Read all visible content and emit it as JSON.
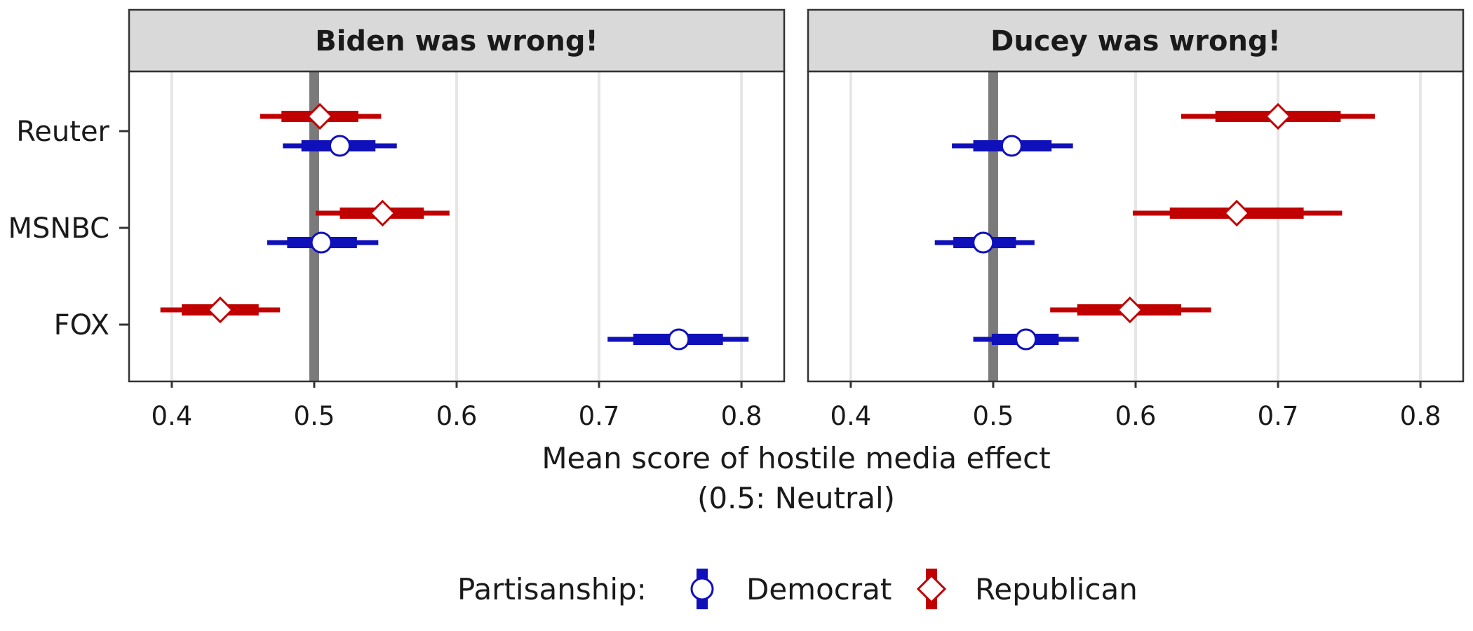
{
  "chart_data": {
    "type": "pointrange",
    "xlabel": "Mean score of hostile media effect",
    "xlabel_sub": "(0.5: Neutral)",
    "xlim": [
      0.37,
      0.83
    ],
    "xticks": [
      0.4,
      0.5,
      0.6,
      0.7,
      0.8
    ],
    "xtick_labels": [
      "0.4",
      "0.5",
      "0.6",
      "0.7",
      "0.8"
    ],
    "reference_line": 0.5,
    "categories": [
      "Reuter",
      "MSNBC",
      "FOX"
    ],
    "grid": true,
    "legend": {
      "title": "Partisanship:",
      "position": "bottom",
      "entries": [
        {
          "name": "Democrat",
          "color": "#1010bb",
          "marker": "circle"
        },
        {
          "name": "Republican",
          "color": "#c00000",
          "marker": "diamond"
        }
      ]
    },
    "panels": [
      {
        "title": "Biden was wrong!",
        "series": [
          {
            "name": "Democrat",
            "points": [
              {
                "category": "Reuter",
                "mean": 0.518,
                "ci_inner": [
                  0.491,
                  0.543
                ],
                "ci_outer": [
                  0.478,
                  0.558
                ]
              },
              {
                "category": "MSNBC",
                "mean": 0.505,
                "ci_inner": [
                  0.481,
                  0.53
                ],
                "ci_outer": [
                  0.467,
                  0.545
                ]
              },
              {
                "category": "FOX",
                "mean": 0.756,
                "ci_inner": [
                  0.724,
                  0.787
                ],
                "ci_outer": [
                  0.706,
                  0.805
                ]
              }
            ]
          },
          {
            "name": "Republican",
            "points": [
              {
                "category": "Reuter",
                "mean": 0.504,
                "ci_inner": [
                  0.477,
                  0.531
                ],
                "ci_outer": [
                  0.462,
                  0.547
                ]
              },
              {
                "category": "MSNBC",
                "mean": 0.548,
                "ci_inner": [
                  0.518,
                  0.577
                ],
                "ci_outer": [
                  0.501,
                  0.595
                ]
              },
              {
                "category": "FOX",
                "mean": 0.434,
                "ci_inner": [
                  0.407,
                  0.461
                ],
                "ci_outer": [
                  0.392,
                  0.476
                ]
              }
            ]
          }
        ]
      },
      {
        "title": "Ducey was wrong!",
        "series": [
          {
            "name": "Democrat",
            "points": [
              {
                "category": "Reuter",
                "mean": 0.513,
                "ci_inner": [
                  0.486,
                  0.541
                ],
                "ci_outer": [
                  0.471,
                  0.556
                ]
              },
              {
                "category": "MSNBC",
                "mean": 0.493,
                "ci_inner": [
                  0.472,
                  0.516
                ],
                "ci_outer": [
                  0.459,
                  0.529
                ]
              },
              {
                "category": "FOX",
                "mean": 0.523,
                "ci_inner": [
                  0.499,
                  0.546
                ],
                "ci_outer": [
                  0.486,
                  0.56
                ]
              }
            ]
          },
          {
            "name": "Republican",
            "points": [
              {
                "category": "Reuter",
                "mean": 0.7,
                "ci_inner": [
                  0.656,
                  0.744
                ],
                "ci_outer": [
                  0.632,
                  0.768
                ]
              },
              {
                "category": "MSNBC",
                "mean": 0.671,
                "ci_inner": [
                  0.624,
                  0.718
                ],
                "ci_outer": [
                  0.598,
                  0.745
                ]
              },
              {
                "category": "FOX",
                "mean": 0.596,
                "ci_inner": [
                  0.559,
                  0.632
                ],
                "ci_outer": [
                  0.54,
                  0.653
                ]
              }
            ]
          }
        ]
      }
    ]
  }
}
